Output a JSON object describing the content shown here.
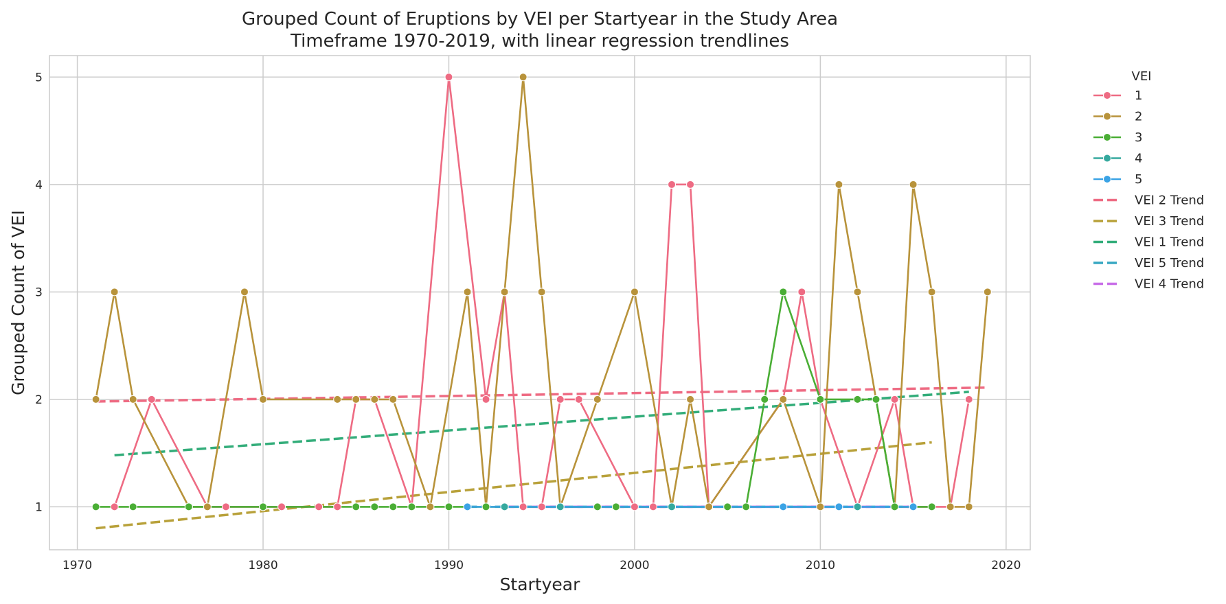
{
  "chart_data": {
    "type": "line",
    "title_lines": [
      "Grouped Count of Eruptions by VEI per Startyear in the Study Area",
      "Timeframe 1970-2019, with linear regression trendlines"
    ],
    "xlabel": "Startyear",
    "ylabel": "Grouped Count of VEI",
    "xlim": [
      1968.5,
      2021.3
    ],
    "ylim": [
      0.6,
      5.2
    ],
    "xticks": [
      1970,
      1980,
      1990,
      2000,
      2010,
      2020
    ],
    "yticks": [
      1,
      2,
      3,
      4,
      5
    ],
    "grid": true,
    "legend_title": "VEI",
    "legend_position": "outside right",
    "series": [
      {
        "name": "1",
        "color": "#ee6b83",
        "points": [
          [
            1972,
            1
          ],
          [
            1974,
            2
          ],
          [
            1977,
            1
          ],
          [
            1978,
            1
          ],
          [
            1980,
            1
          ],
          [
            1981,
            1
          ],
          [
            1983,
            1
          ],
          [
            1984,
            1
          ],
          [
            1985,
            2
          ],
          [
            1986,
            2
          ],
          [
            1988,
            1
          ],
          [
            1990,
            5
          ],
          [
            1992,
            2
          ],
          [
            1993,
            3
          ],
          [
            1994,
            1
          ],
          [
            1995,
            1
          ],
          [
            1996,
            2
          ],
          [
            1997,
            2
          ],
          [
            2000,
            1
          ],
          [
            2001,
            1
          ],
          [
            2002,
            4
          ],
          [
            2003,
            4
          ],
          [
            2004,
            1
          ],
          [
            2008,
            2
          ],
          [
            2009,
            3
          ],
          [
            2010,
            2
          ],
          [
            2012,
            1
          ],
          [
            2014,
            2
          ],
          [
            2015,
            1
          ],
          [
            2017,
            1
          ],
          [
            2018,
            2
          ]
        ]
      },
      {
        "name": "2",
        "color": "#b8933b",
        "points": [
          [
            1971,
            2
          ],
          [
            1972,
            3
          ],
          [
            1973,
            2
          ],
          [
            1976,
            1
          ],
          [
            1977,
            1
          ],
          [
            1979,
            3
          ],
          [
            1980,
            2
          ],
          [
            1984,
            2
          ],
          [
            1985,
            2
          ],
          [
            1986,
            2
          ],
          [
            1987,
            2
          ],
          [
            1989,
            1
          ],
          [
            1991,
            3
          ],
          [
            1992,
            1
          ],
          [
            1993,
            3
          ],
          [
            1994,
            5
          ],
          [
            1995,
            3
          ],
          [
            1996,
            1
          ],
          [
            1998,
            2
          ],
          [
            2000,
            3
          ],
          [
            2002,
            1
          ],
          [
            2003,
            2
          ],
          [
            2004,
            1
          ],
          [
            2008,
            2
          ],
          [
            2010,
            1
          ],
          [
            2011,
            4
          ],
          [
            2012,
            3
          ],
          [
            2013,
            2
          ],
          [
            2014,
            1
          ],
          [
            2015,
            4
          ],
          [
            2016,
            3
          ],
          [
            2017,
            1
          ],
          [
            2018,
            1
          ],
          [
            2019,
            3
          ]
        ]
      },
      {
        "name": "3",
        "color": "#4aae35",
        "points": [
          [
            1971,
            1
          ],
          [
            1973,
            1
          ],
          [
            1976,
            1
          ],
          [
            1980,
            1
          ],
          [
            1985,
            1
          ],
          [
            1986,
            1
          ],
          [
            1987,
            1
          ],
          [
            1988,
            1
          ],
          [
            1990,
            1
          ],
          [
            1992,
            1
          ],
          [
            1993,
            1
          ],
          [
            1998,
            1
          ],
          [
            1999,
            1
          ],
          [
            2005,
            1
          ],
          [
            2006,
            1
          ],
          [
            2007,
            2
          ],
          [
            2008,
            3
          ],
          [
            2010,
            2
          ],
          [
            2012,
            2
          ],
          [
            2013,
            2
          ],
          [
            2014,
            1
          ],
          [
            2016,
            1
          ]
        ]
      },
      {
        "name": "4",
        "color": "#35a99e",
        "points": [
          [
            1993,
            1
          ],
          [
            1996,
            1
          ],
          [
            2002,
            1
          ],
          [
            2012,
            1
          ]
        ]
      },
      {
        "name": "5",
        "color": "#3ba3e5",
        "points": [
          [
            1991,
            1
          ],
          [
            2008,
            1
          ],
          [
            2011,
            1
          ],
          [
            2015,
            1
          ]
        ]
      }
    ],
    "trendlines": [
      {
        "name": "VEI 2 Trend",
        "color": "#ee6b83",
        "x": [
          1971,
          2019
        ],
        "y": [
          1.98,
          2.11
        ]
      },
      {
        "name": "VEI 3 Trend",
        "color": "#b8a13a",
        "x": [
          1971,
          2016
        ],
        "y": [
          0.8,
          1.6
        ]
      },
      {
        "name": "VEI 1 Trend",
        "color": "#33ad7a",
        "x": [
          1972,
          2018
        ],
        "y": [
          1.48,
          2.07
        ]
      },
      {
        "name": "VEI 5 Trend",
        "color": "#37a7c2",
        "x": [
          1991,
          2015
        ],
        "y": [
          1.0,
          1.0
        ]
      },
      {
        "name": "VEI 4 Trend",
        "color": "#c86ee8",
        "x": [
          1993,
          2015
        ],
        "y": [
          1.0,
          1.0
        ]
      }
    ]
  }
}
